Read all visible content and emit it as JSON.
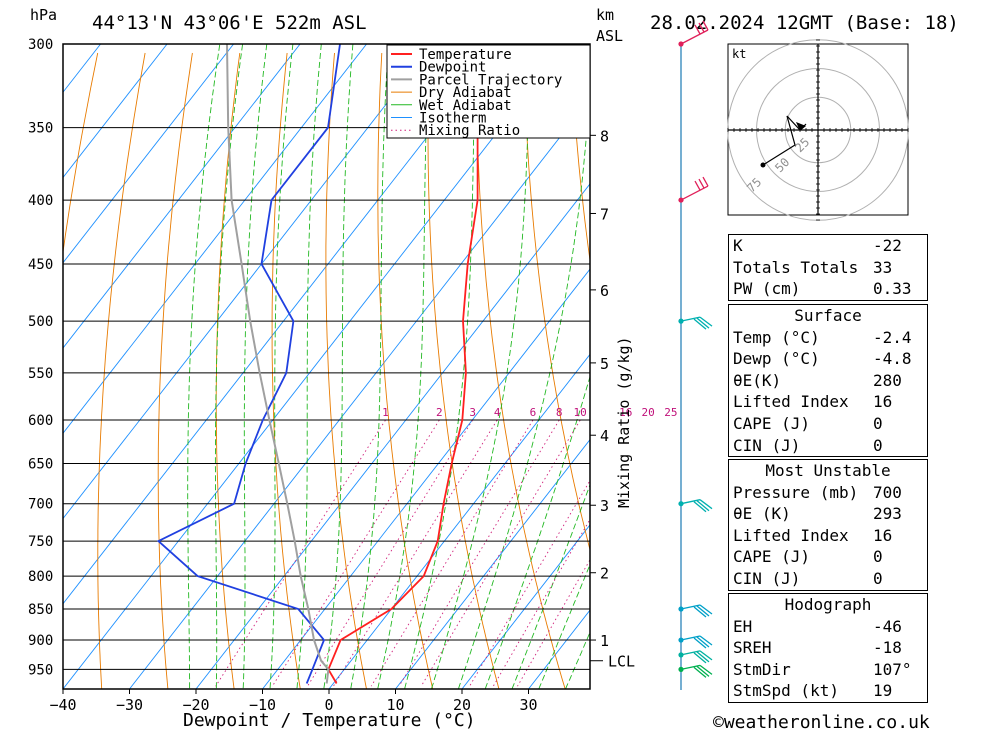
{
  "header": {
    "location": "44°13'N 43°06'E 522m ASL",
    "datetime": "28.02.2024 12GMT (Base: 18)",
    "hpa_label": "hPa",
    "km_label": "km",
    "asl_label": "ASL",
    "kt_label": "kt",
    "copyright": "©weatheronline.co.uk"
  },
  "chart_data": {
    "type": "skew-t",
    "xlabel": "Dewpoint / Temperature (°C)",
    "ylabel_right": "Mixing Ratio (g/kg)",
    "x_ticks": [
      -40,
      -30,
      -20,
      -10,
      0,
      10,
      20,
      30
    ],
    "pressure_levels": [
      300,
      350,
      400,
      450,
      500,
      550,
      600,
      650,
      700,
      750,
      800,
      850,
      900,
      950
    ],
    "km_ticks": [
      {
        "km": "8",
        "p": 355
      },
      {
        "km": "7",
        "p": 410
      },
      {
        "km": "6",
        "p": 472
      },
      {
        "km": "5",
        "p": 540
      },
      {
        "km": "4",
        "p": 617
      },
      {
        "km": "3",
        "p": 702
      },
      {
        "km": "2",
        "p": 795
      },
      {
        "km": "1",
        "p": 900
      }
    ],
    "lcl": {
      "label": "LCL",
      "p": 935
    },
    "mixing_ratio_labels": [
      "1",
      "2",
      "3",
      "4",
      "6",
      "8",
      "10",
      "16",
      "20",
      "25"
    ],
    "mixing_ratio_values": [
      1,
      2,
      3,
      4,
      6,
      8,
      10,
      16,
      20,
      25
    ],
    "legend": [
      "Temperature",
      "Dewpoint",
      "Parcel Trajectory",
      "Dry Adiabat",
      "Wet Adiabat",
      "Isotherm",
      "Mixing Ratio"
    ],
    "series": [
      {
        "name": "Temperature",
        "color": "#ff2020",
        "points": [
          [
            975,
            0.5
          ],
          [
            950,
            -2.4
          ],
          [
            900,
            -4.0
          ],
          [
            850,
            0.0
          ],
          [
            800,
            1.0
          ],
          [
            750,
            -1.0
          ],
          [
            700,
            -4.5
          ],
          [
            650,
            -8.0
          ],
          [
            600,
            -11.5
          ],
          [
            550,
            -16.5
          ],
          [
            500,
            -23.0
          ],
          [
            450,
            -29.0
          ],
          [
            400,
            -35.0
          ],
          [
            350,
            -43.5
          ],
          [
            300,
            -53.0
          ]
        ]
      },
      {
        "name": "Dewpoint",
        "color": "#2040e0",
        "points": [
          [
            975,
            -4.0
          ],
          [
            950,
            -4.8
          ],
          [
            900,
            -6.5
          ],
          [
            850,
            -14.0
          ],
          [
            800,
            -33.0
          ],
          [
            750,
            -43.0
          ],
          [
            700,
            -36.0
          ],
          [
            650,
            -39.0
          ],
          [
            600,
            -41.5
          ],
          [
            550,
            -43.5
          ],
          [
            500,
            -48.5
          ],
          [
            450,
            -60.0
          ],
          [
            400,
            -66.0
          ],
          [
            350,
            -66.0
          ],
          [
            300,
            -74.0
          ]
        ]
      },
      {
        "name": "Parcel Trajectory",
        "color": "#a0a0a0",
        "points": [
          [
            975,
            -1.0
          ],
          [
            950,
            -2.4
          ],
          [
            935,
            -4.5
          ],
          [
            900,
            -8.0
          ],
          [
            850,
            -12.5
          ],
          [
            800,
            -17.5
          ],
          [
            750,
            -22.5
          ],
          [
            700,
            -28.0
          ],
          [
            650,
            -34.0
          ],
          [
            600,
            -40.5
          ],
          [
            550,
            -47.5
          ],
          [
            500,
            -55.0
          ],
          [
            450,
            -63.0
          ],
          [
            400,
            -72.0
          ],
          [
            350,
            -81.0
          ],
          [
            300,
            -91.0
          ]
        ]
      }
    ],
    "wind_barbs": [
      {
        "p": 300,
        "color": "#e0205a"
      },
      {
        "p": 400,
        "color": "#e0205a"
      },
      {
        "p": 500,
        "color": "#00b0b0"
      },
      {
        "p": 700,
        "color": "#00b0b0"
      },
      {
        "p": 850,
        "color": "#00a0c8"
      },
      {
        "p": 900,
        "color": "#00a0c8"
      },
      {
        "p": 925,
        "color": "#00b0a0"
      },
      {
        "p": 950,
        "color": "#00b050"
      }
    ],
    "hodograph_ring_labels": [
      "25",
      "50",
      "75"
    ]
  },
  "indices": {
    "rows": [
      {
        "k": "K",
        "v": "-22"
      },
      {
        "k": "Totals Totals",
        "v": "33"
      },
      {
        "k": "PW (cm)",
        "v": "0.33"
      }
    ]
  },
  "surface": {
    "title": "Surface",
    "rows": [
      {
        "k": "Temp (°C)",
        "v": "-2.4"
      },
      {
        "k": "Dewp (°C)",
        "v": "-4.8"
      },
      {
        "k": "θE(K)",
        "v": "280"
      },
      {
        "k": "Lifted Index",
        "v": "16"
      },
      {
        "k": "CAPE (J)",
        "v": "0"
      },
      {
        "k": "CIN (J)",
        "v": "0"
      }
    ]
  },
  "unstable": {
    "title": "Most Unstable",
    "rows": [
      {
        "k": "Pressure (mb)",
        "v": "700"
      },
      {
        "k": "θE (K)",
        "v": "293"
      },
      {
        "k": "Lifted Index",
        "v": "16"
      },
      {
        "k": "CAPE (J)",
        "v": "0"
      },
      {
        "k": "CIN (J)",
        "v": "0"
      }
    ]
  },
  "hodograph": {
    "title": "Hodograph",
    "rows": [
      {
        "k": "EH",
        "v": "-46"
      },
      {
        "k": "SREH",
        "v": "-18"
      },
      {
        "k": "StmDir",
        "v": "107°"
      },
      {
        "k": "StmSpd (kt)",
        "v": "19"
      }
    ]
  }
}
